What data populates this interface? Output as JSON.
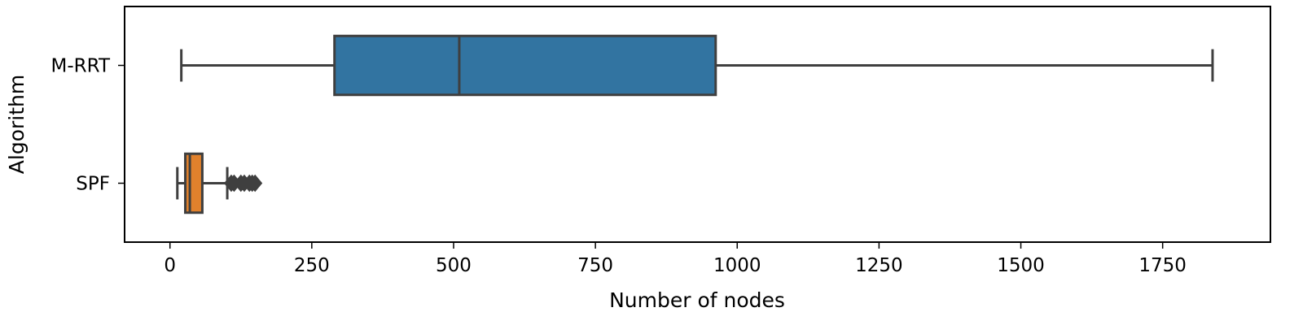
{
  "chart_data": {
    "type": "box",
    "orientation": "horizontal",
    "xlabel": "Number of nodes",
    "ylabel": "Algorithm",
    "xlim": [
      -80,
      1940
    ],
    "xticks": [
      0,
      250,
      500,
      750,
      1000,
      1250,
      1500,
      1750
    ],
    "grid": false,
    "categories": [
      "M-RRT",
      "SPF"
    ],
    "series": [
      {
        "name": "M-RRT",
        "color": "#3274a1",
        "whisker_low": 20,
        "q1": 290,
        "median": 510,
        "q3": 962,
        "whisker_high": 1838,
        "outliers": []
      },
      {
        "name": "SPF",
        "color": "#e1812c",
        "whisker_low": 13,
        "q1": 27,
        "median": 35,
        "q3": 57,
        "whisker_high": 101,
        "outliers": [
          108,
          113,
          125,
          131,
          140,
          145,
          150
        ]
      }
    ]
  }
}
